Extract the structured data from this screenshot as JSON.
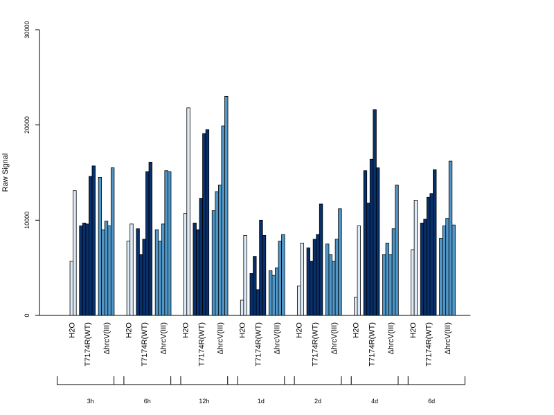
{
  "chart_data": {
    "type": "bar",
    "title": "",
    "xlabel": "",
    "ylabel": "Raw Signal",
    "ylim": [
      0,
      30000
    ],
    "yticks": [
      "0",
      "10000",
      "20000",
      "30000"
    ],
    "grid": false,
    "legend": "none",
    "colors": {
      "H2O": "#deebf7",
      "T7174R(WT)": "#08306b",
      "ΔhrcV(III)": "#4f97c9"
    },
    "treatments": [
      "H2O",
      "T7174R(WT)",
      "ΔhrcV(III)"
    ],
    "timepoints": [
      {
        "label": "3h",
        "groups": [
          {
            "treatment": "H2O",
            "values": [
              0,
              5700,
              13100
            ]
          },
          {
            "treatment": "T7174R(WT)",
            "values": [
              9400,
              9700,
              9600,
              14600,
              15700
            ]
          },
          {
            "treatment": "ΔhrcV(III)",
            "values": [
              14500,
              9000,
              9900,
              9400,
              15500
            ]
          }
        ]
      },
      {
        "label": "6h",
        "groups": [
          {
            "treatment": "H2O",
            "values": [
              0,
              7800,
              9600
            ]
          },
          {
            "treatment": "T7174R(WT)",
            "values": [
              9100,
              6400,
              8000,
              15100,
              16100
            ]
          },
          {
            "treatment": "ΔhrcV(III)",
            "values": [
              9000,
              7800,
              9600,
              15200,
              15100
            ]
          }
        ]
      },
      {
        "label": "12h",
        "groups": [
          {
            "treatment": "H2O",
            "values": [
              0,
              10700,
              21800
            ]
          },
          {
            "treatment": "T7174R(WT)",
            "values": [
              9700,
              9000,
              12300,
              19100,
              19500
            ]
          },
          {
            "treatment": "ΔhrcV(III)",
            "values": [
              11000,
              13000,
              13700,
              19900,
              23000
            ]
          }
        ]
      },
      {
        "label": "1d",
        "groups": [
          {
            "treatment": "H2O",
            "values": [
              0,
              1600,
              8400
            ]
          },
          {
            "treatment": "T7174R(WT)",
            "values": [
              4400,
              6200,
              2700,
              10000,
              8400
            ]
          },
          {
            "treatment": "ΔhrcV(III)",
            "values": [
              4700,
              4200,
              5000,
              7800,
              8500
            ]
          }
        ]
      },
      {
        "label": "2d",
        "groups": [
          {
            "treatment": "H2O",
            "values": [
              0,
              3100,
              7600
            ]
          },
          {
            "treatment": "T7174R(WT)",
            "values": [
              7100,
              5700,
              8000,
              8500,
              11700
            ]
          },
          {
            "treatment": "ΔhrcV(III)",
            "values": [
              7500,
              6400,
              5700,
              8000,
              11200
            ]
          }
        ]
      },
      {
        "label": "4d",
        "groups": [
          {
            "treatment": "H2O",
            "values": [
              0,
              1900,
              9400
            ]
          },
          {
            "treatment": "T7174R(WT)",
            "values": [
              15200,
              11800,
              16400,
              21600,
              15500
            ]
          },
          {
            "treatment": "ΔhrcV(III)",
            "values": [
              6400,
              7600,
              6400,
              9100,
              13700
            ]
          }
        ]
      },
      {
        "label": "6d",
        "groups": [
          {
            "treatment": "H2O",
            "values": [
              0,
              6900,
              12100
            ]
          },
          {
            "treatment": "T7174R(WT)",
            "values": [
              9700,
              10100,
              12400,
              12800,
              15300
            ]
          },
          {
            "treatment": "ΔhrcV(III)",
            "values": [
              8100,
              9400,
              10200,
              16200,
              9500
            ]
          }
        ]
      }
    ]
  }
}
